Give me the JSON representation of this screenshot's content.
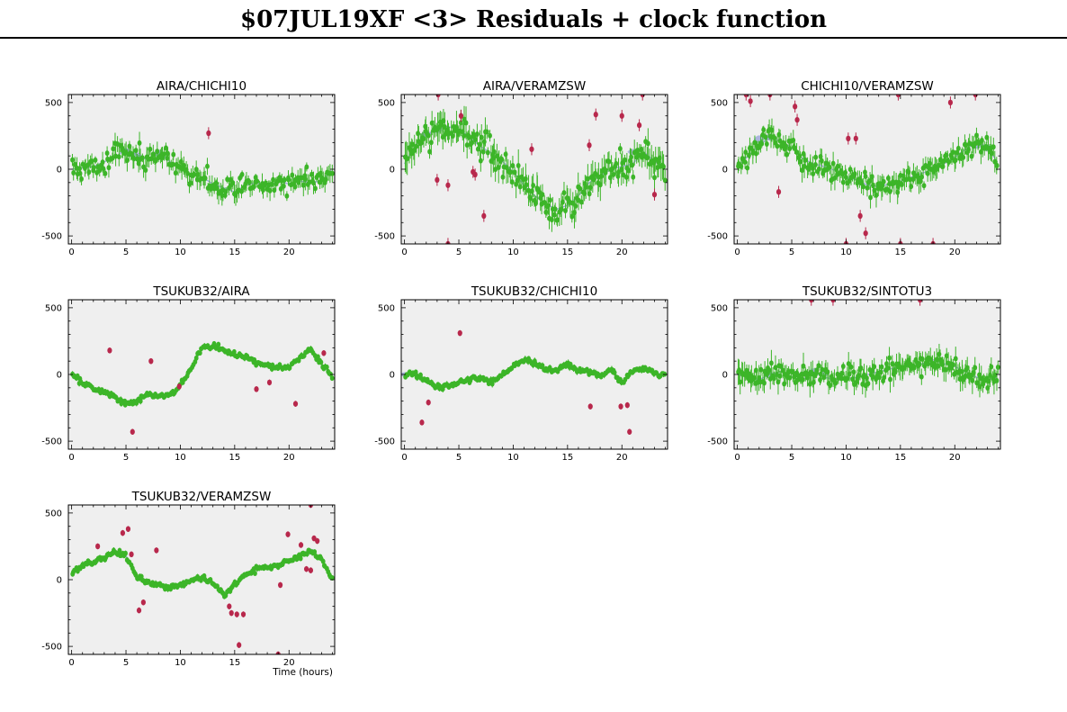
{
  "title": "$07JUL19XF <3> Residuals + clock function",
  "colors": {
    "good": "#3cb528",
    "bad": "#b8284c",
    "clock": "#9aa6d8",
    "panel_bg": "#efefef"
  },
  "chart_data": [
    {
      "type": "scatter",
      "title": "AIRA/CHICHI10",
      "xlabel": "",
      "ylabel": "",
      "xlim": [
        -0.3,
        24.2
      ],
      "ylim": [
        -560,
        560
      ],
      "xticks": [
        0,
        5,
        10,
        15,
        20
      ],
      "yticks": [
        -500,
        0,
        500
      ],
      "noise": 55,
      "err": 55,
      "n_points": 190,
      "trend": [
        [
          0,
          0
        ],
        [
          2,
          20
        ],
        [
          4,
          90
        ],
        [
          5,
          150
        ],
        [
          6,
          110
        ],
        [
          7,
          70
        ],
        [
          8,
          130
        ],
        [
          9,
          60
        ],
        [
          10,
          0
        ],
        [
          11,
          -40
        ],
        [
          12,
          -60
        ],
        [
          13,
          -110
        ],
        [
          14,
          -140
        ],
        [
          15,
          -170
        ],
        [
          16,
          -120
        ],
        [
          17,
          -100
        ],
        [
          18,
          -130
        ],
        [
          19,
          -90
        ],
        [
          20,
          -110
        ],
        [
          21,
          -90
        ],
        [
          22,
          -100
        ],
        [
          23,
          -90
        ],
        [
          24,
          0
        ]
      ],
      "outliers": [
        {
          "x": 12.6,
          "y": 270
        }
      ],
      "clock_band": [
        [
          5,
          100,
          170
        ],
        [
          6,
          60,
          140
        ],
        [
          8,
          80,
          160
        ],
        [
          13,
          -170,
          -110
        ]
      ]
    },
    {
      "type": "scatter",
      "title": "AIRA/VERAMZSW",
      "xlabel": "",
      "ylabel": "",
      "xlim": [
        -0.3,
        24.2
      ],
      "ylim": [
        -560,
        560
      ],
      "xticks": [
        0,
        5,
        10,
        15,
        20
      ],
      "yticks": [
        -500,
        0,
        500
      ],
      "noise": 70,
      "err": 80,
      "n_points": 210,
      "trend": [
        [
          0,
          40
        ],
        [
          1,
          180
        ],
        [
          2,
          260
        ],
        [
          3,
          300
        ],
        [
          4,
          320
        ],
        [
          5,
          300
        ],
        [
          6,
          240
        ],
        [
          7,
          170
        ],
        [
          8,
          120
        ],
        [
          9,
          60
        ],
        [
          10,
          -20
        ],
        [
          11,
          -120
        ],
        [
          12,
          -200
        ],
        [
          13,
          -260
        ],
        [
          14,
          -300
        ],
        [
          15,
          -270
        ],
        [
          16,
          -200
        ],
        [
          17,
          -100
        ],
        [
          18,
          -50
        ],
        [
          19,
          0
        ],
        [
          20,
          20
        ],
        [
          21,
          40
        ],
        [
          22,
          130
        ],
        [
          23,
          60
        ],
        [
          24,
          0
        ]
      ],
      "outliers": [
        {
          "x": 3.0,
          "y": -80
        },
        {
          "x": 4.0,
          "y": -120
        },
        {
          "x": 5.2,
          "y": 400
        },
        {
          "x": 6.3,
          "y": -20
        },
        {
          "x": 6.5,
          "y": -40
        },
        {
          "x": 7.3,
          "y": -350
        },
        {
          "x": 11.7,
          "y": 150
        },
        {
          "x": 17.0,
          "y": 180
        },
        {
          "x": 17.6,
          "y": 410
        },
        {
          "x": 20.0,
          "y": 400
        },
        {
          "x": 21.6,
          "y": 330
        },
        {
          "x": 23.0,
          "y": -190
        },
        {
          "x": 3.1,
          "y": 560
        },
        {
          "x": 21.9,
          "y": 560
        },
        {
          "x": 4.0,
          "y": -560
        }
      ],
      "clock_band": [
        [
          2,
          230,
          300
        ],
        [
          3,
          260,
          330
        ],
        [
          21,
          100,
          160
        ]
      ]
    },
    {
      "type": "scatter",
      "title": "CHICHI10/VERAMZSW",
      "xlabel": "",
      "ylabel": "",
      "xlim": [
        -0.3,
        24.2
      ],
      "ylim": [
        -560,
        560
      ],
      "xticks": [
        0,
        5,
        10,
        15,
        20
      ],
      "yticks": [
        -500,
        0,
        500
      ],
      "noise": 55,
      "err": 60,
      "n_points": 200,
      "trend": [
        [
          0,
          20
        ],
        [
          1,
          100
        ],
        [
          2,
          180
        ],
        [
          3,
          240
        ],
        [
          4,
          210
        ],
        [
          5,
          160
        ],
        [
          6,
          80
        ],
        [
          7,
          40
        ],
        [
          8,
          20
        ],
        [
          9,
          -10
        ],
        [
          10,
          -60
        ],
        [
          11,
          -80
        ],
        [
          12,
          -120
        ],
        [
          13,
          -130
        ],
        [
          14,
          -110
        ],
        [
          15,
          -90
        ],
        [
          16,
          -60
        ],
        [
          17,
          -30
        ],
        [
          18,
          0
        ],
        [
          19,
          40
        ],
        [
          20,
          90
        ],
        [
          21,
          150
        ],
        [
          22,
          200
        ],
        [
          23,
          170
        ],
        [
          24,
          40
        ]
      ],
      "outliers": [
        {
          "x": 1.2,
          "y": 510
        },
        {
          "x": 3.8,
          "y": -170
        },
        {
          "x": 5.3,
          "y": 470
        },
        {
          "x": 5.5,
          "y": 370
        },
        {
          "x": 10.2,
          "y": 230
        },
        {
          "x": 10.9,
          "y": 230
        },
        {
          "x": 11.3,
          "y": -350
        },
        {
          "x": 11.8,
          "y": -480
        },
        {
          "x": 19.6,
          "y": 500
        },
        {
          "x": 0.8,
          "y": 560
        },
        {
          "x": 3.0,
          "y": 560
        },
        {
          "x": 14.8,
          "y": 560
        },
        {
          "x": 21.9,
          "y": 560
        },
        {
          "x": 10.0,
          "y": -560
        },
        {
          "x": 15.0,
          "y": -560
        },
        {
          "x": 18.0,
          "y": -560
        }
      ],
      "clock_band": [
        [
          2,
          180,
          270
        ],
        [
          3,
          200,
          280
        ],
        [
          22,
          140,
          220
        ],
        [
          23,
          120,
          200
        ]
      ]
    },
    {
      "type": "scatter",
      "title": "TSUKUB32/AIRA",
      "xlabel": "",
      "ylabel": "",
      "xlim": [
        -0.3,
        24.2
      ],
      "ylim": [
        -560,
        560
      ],
      "xticks": [
        0,
        5,
        10,
        15,
        20
      ],
      "yticks": [
        -500,
        0,
        500
      ],
      "noise": 14,
      "err": 16,
      "n_points": 200,
      "trend": [
        [
          0,
          0
        ],
        [
          1,
          -60
        ],
        [
          2,
          -110
        ],
        [
          3,
          -130
        ],
        [
          4,
          -160
        ],
        [
          5,
          -220
        ],
        [
          6,
          -200
        ],
        [
          7,
          -150
        ],
        [
          8,
          -160
        ],
        [
          9,
          -160
        ],
        [
          10,
          -80
        ],
        [
          11,
          40
        ],
        [
          12,
          200
        ],
        [
          13,
          210
        ],
        [
          14,
          180
        ],
        [
          15,
          150
        ],
        [
          16,
          130
        ],
        [
          17,
          90
        ],
        [
          18,
          60
        ],
        [
          19,
          50
        ],
        [
          20,
          60
        ],
        [
          21,
          120
        ],
        [
          22,
          180
        ],
        [
          23,
          80
        ],
        [
          24,
          -20
        ]
      ],
      "outliers": [
        {
          "x": 3.5,
          "y": 180
        },
        {
          "x": 5.6,
          "y": -430
        },
        {
          "x": 7.3,
          "y": 100
        },
        {
          "x": 9.9,
          "y": -90
        },
        {
          "x": 17.0,
          "y": -110
        },
        {
          "x": 18.2,
          "y": -60
        },
        {
          "x": 20.6,
          "y": -220
        },
        {
          "x": 23.2,
          "y": 160
        }
      ],
      "clock_band": [
        [
          5,
          -240,
          -190
        ]
      ]
    },
    {
      "type": "scatter",
      "title": "TSUKUB32/CHICHI10",
      "xlabel": "",
      "ylabel": "",
      "xlim": [
        -0.3,
        24.2
      ],
      "ylim": [
        -560,
        560
      ],
      "xticks": [
        0,
        5,
        10,
        15,
        20
      ],
      "yticks": [
        -500,
        0,
        500
      ],
      "noise": 14,
      "err": 18,
      "n_points": 200,
      "trend": [
        [
          0,
          0
        ],
        [
          1,
          10
        ],
        [
          2,
          -40
        ],
        [
          3,
          -100
        ],
        [
          4,
          -90
        ],
        [
          5,
          -60
        ],
        [
          6,
          -40
        ],
        [
          7,
          -20
        ],
        [
          8,
          -50
        ],
        [
          9,
          -10
        ],
        [
          10,
          60
        ],
        [
          11,
          120
        ],
        [
          12,
          80
        ],
        [
          13,
          40
        ],
        [
          14,
          30
        ],
        [
          15,
          80
        ],
        [
          16,
          30
        ],
        [
          17,
          20
        ],
        [
          18,
          -10
        ],
        [
          19,
          40
        ],
        [
          20,
          -60
        ],
        [
          21,
          30
        ],
        [
          22,
          40
        ],
        [
          23,
          10
        ],
        [
          24,
          0
        ]
      ],
      "outliers": [
        {
          "x": 1.6,
          "y": -360
        },
        {
          "x": 2.2,
          "y": -210
        },
        {
          "x": 5.1,
          "y": 310
        },
        {
          "x": 17.1,
          "y": -240
        },
        {
          "x": 19.9,
          "y": -240
        },
        {
          "x": 20.5,
          "y": -230
        },
        {
          "x": 20.7,
          "y": -430
        }
      ],
      "clock_band": [
        [
          0,
          -20,
          20
        ]
      ]
    },
    {
      "type": "scatter",
      "title": "TSUKUB32/SINTOTU3",
      "xlabel": "",
      "ylabel": "",
      "xlim": [
        -0.3,
        24.2
      ],
      "ylim": [
        -560,
        560
      ],
      "xticks": [
        0,
        5,
        10,
        15,
        20
      ],
      "yticks": [
        -500,
        0,
        500
      ],
      "noise": 55,
      "err": 65,
      "n_points": 210,
      "trend": [
        [
          0,
          0
        ],
        [
          1,
          -20
        ],
        [
          2,
          -40
        ],
        [
          3,
          0
        ],
        [
          4,
          20
        ],
        [
          5,
          -20
        ],
        [
          6,
          -40
        ],
        [
          7,
          20
        ],
        [
          8,
          -20
        ],
        [
          9,
          -40
        ],
        [
          10,
          -30
        ],
        [
          11,
          -20
        ],
        [
          12,
          0
        ],
        [
          13,
          20
        ],
        [
          14,
          40
        ],
        [
          15,
          60
        ],
        [
          16,
          60
        ],
        [
          17,
          80
        ],
        [
          18,
          110
        ],
        [
          19,
          80
        ],
        [
          20,
          60
        ],
        [
          21,
          20
        ],
        [
          22,
          -20
        ],
        [
          23,
          -40
        ],
        [
          24,
          -20
        ]
      ],
      "outliers": [
        {
          "x": 6.8,
          "y": 560
        },
        {
          "x": 8.8,
          "y": 560
        },
        {
          "x": 16.8,
          "y": 560
        }
      ],
      "clock_band": [
        [
          3,
          -40,
          30
        ],
        [
          7,
          -20,
          60
        ],
        [
          8,
          -30,
          50
        ]
      ]
    },
    {
      "type": "scatter",
      "title": "TSUKUB32/VERAMZSW",
      "xlabel": "Time (hours)",
      "ylabel": "",
      "xlim": [
        -0.3,
        24.2
      ],
      "ylim": [
        -560,
        560
      ],
      "xticks": [
        0,
        5,
        10,
        15,
        20
      ],
      "yticks": [
        -500,
        0,
        500
      ],
      "noise": 14,
      "err": 16,
      "n_points": 200,
      "trend": [
        [
          0,
          40
        ],
        [
          1,
          110
        ],
        [
          2,
          130
        ],
        [
          3,
          170
        ],
        [
          4,
          210
        ],
        [
          5,
          180
        ],
        [
          6,
          20
        ],
        [
          7,
          -20
        ],
        [
          8,
          -40
        ],
        [
          9,
          -60
        ],
        [
          10,
          -40
        ],
        [
          11,
          0
        ],
        [
          12,
          20
        ],
        [
          13,
          -20
        ],
        [
          14,
          -120
        ],
        [
          15,
          -40
        ],
        [
          16,
          40
        ],
        [
          17,
          80
        ],
        [
          18,
          90
        ],
        [
          19,
          110
        ],
        [
          20,
          140
        ],
        [
          21,
          170
        ],
        [
          22,
          220
        ],
        [
          23,
          150
        ],
        [
          24,
          0
        ]
      ],
      "outliers": [
        {
          "x": 2.4,
          "y": 250
        },
        {
          "x": 4.7,
          "y": 350
        },
        {
          "x": 5.2,
          "y": 380
        },
        {
          "x": 5.5,
          "y": 190
        },
        {
          "x": 6.2,
          "y": -230
        },
        {
          "x": 6.6,
          "y": -170
        },
        {
          "x": 7.8,
          "y": 220
        },
        {
          "x": 14.5,
          "y": -200
        },
        {
          "x": 14.7,
          "y": -250
        },
        {
          "x": 15.2,
          "y": -260
        },
        {
          "x": 15.4,
          "y": -490
        },
        {
          "x": 15.8,
          "y": -260
        },
        {
          "x": 19.2,
          "y": -40
        },
        {
          "x": 19.9,
          "y": 340
        },
        {
          "x": 21.1,
          "y": 260
        },
        {
          "x": 21.6,
          "y": 80
        },
        {
          "x": 22.0,
          "y": 70
        },
        {
          "x": 22.3,
          "y": 310
        },
        {
          "x": 22.6,
          "y": 290
        },
        {
          "x": 19.0,
          "y": -560
        },
        {
          "x": 22.0,
          "y": 560
        }
      ],
      "clock_band": [
        [
          22,
          180,
          240
        ]
      ]
    }
  ]
}
